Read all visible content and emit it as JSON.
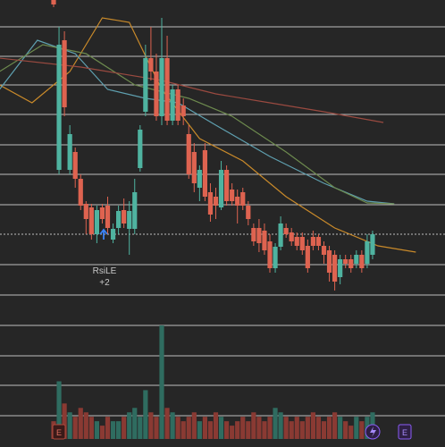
{
  "chart_data": {
    "type": "candlestick",
    "ylim": [
      0,
      330
    ],
    "open": [
      330,
      140,
      285,
      140,
      160,
      130,
      102,
      98,
      68,
      98,
      100,
      62,
      75,
      95,
      74,
      74,
      142,
      205,
      265,
      250,
      200,
      265,
      195,
      230,
      212,
      180,
      160,
      120,
      162,
      115,
      110,
      98,
      140,
      118,
      110,
      115,
      100,
      75,
      75,
      72,
      60,
      30,
      54,
      75,
      70,
      65,
      65,
      55,
      65,
      65,
      55,
      50,
      45,
      20,
      40,
      40,
      35,
      45,
      35,
      45
    ],
    "high": [
      330,
      300,
      295,
      190,
      165,
      135,
      105,
      102,
      100,
      102,
      110,
      80,
      100,
      108,
      105,
      130,
      190,
      280,
      300,
      270,
      310,
      290,
      235,
      235,
      220,
      190,
      170,
      145,
      170,
      125,
      120,
      150,
      145,
      125,
      118,
      120,
      105,
      80,
      85,
      80,
      68,
      58,
      88,
      80,
      75,
      70,
      70,
      62,
      72,
      68,
      60,
      55,
      50,
      45,
      45,
      45,
      50,
      50,
      68,
      72
    ],
    "low": [
      322,
      135,
      200,
      135,
      120,
      95,
      68,
      62,
      58,
      80,
      68,
      58,
      68,
      75,
      45,
      68,
      138,
      200,
      240,
      195,
      190,
      190,
      190,
      190,
      190,
      130,
      115,
      105,
      105,
      82,
      85,
      95,
      100,
      100,
      80,
      95,
      78,
      55,
      48,
      45,
      25,
      25,
      50,
      64,
      55,
      50,
      45,
      25,
      50,
      50,
      35,
      15,
      5,
      12,
      30,
      25,
      30,
      25,
      30,
      40
    ],
    "close": [
      325,
      280,
      210,
      180,
      130,
      100,
      85,
      68,
      95,
      85,
      75,
      74,
      94,
      80,
      94,
      115,
      185,
      265,
      250,
      200,
      265,
      195,
      230,
      195,
      200,
      135,
      125,
      140,
      110,
      90,
      100,
      140,
      105,
      105,
      100,
      100,
      85,
      60,
      58,
      50,
      30,
      54,
      80,
      68,
      60,
      55,
      50,
      30,
      55,
      55,
      45,
      25,
      15,
      40,
      35,
      30,
      45,
      30,
      60,
      68
    ],
    "volume": [
      20,
      65,
      40,
      30,
      25,
      35,
      30,
      25,
      20,
      15,
      25,
      20,
      20,
      25,
      30,
      35,
      25,
      55,
      30,
      25,
      128,
      35,
      30,
      25,
      20,
      25,
      30,
      20,
      25,
      20,
      30,
      25,
      20,
      15,
      20,
      25,
      20,
      30,
      25,
      20,
      25,
      35,
      30,
      25,
      20,
      25,
      20,
      25,
      30,
      25,
      20,
      25,
      30,
      25,
      20,
      15,
      25,
      20,
      25,
      30
    ],
    "volume_ylim": [
      0,
      130
    ],
    "up_color": "#4fb3a0",
    "down_color": "#de6350",
    "volume_up_color": "#2f6c60",
    "volume_down_color": "#8a3a33",
    "lines": [
      {
        "color": "#c98a2a",
        "x": [
          -10,
          -4,
          3,
          9,
          14,
          20,
          27,
          35,
          43,
          52,
          60,
          67
        ],
        "values": [
          235,
          215,
          250,
          310,
          305,
          230,
          175,
          150,
          110,
          75,
          55,
          48
        ]
      },
      {
        "color": "#5fa0b0",
        "x": [
          -10,
          -3,
          4,
          10,
          17,
          23,
          30,
          40,
          50,
          58,
          63
        ],
        "values": [
          230,
          285,
          270,
          230,
          220,
          215,
          190,
          155,
          125,
          105,
          102
        ]
      },
      {
        "color": "#6d8a4e",
        "x": [
          -10,
          -2,
          6,
          15,
          25,
          33,
          43,
          52,
          58,
          63
        ],
        "values": [
          250,
          280,
          270,
          235,
          220,
          200,
          160,
          120,
          103,
          102
        ]
      },
      {
        "color": "#9a4a40",
        "x": [
          -10,
          5,
          20,
          30,
          40,
          50,
          61
        ],
        "values": [
          265,
          255,
          240,
          225,
          215,
          205,
          193
        ]
      }
    ],
    "annotation": {
      "label": "RsiLE",
      "count": "+2"
    },
    "icons": {
      "earnings_left": "E",
      "earnings_right": "E"
    }
  }
}
